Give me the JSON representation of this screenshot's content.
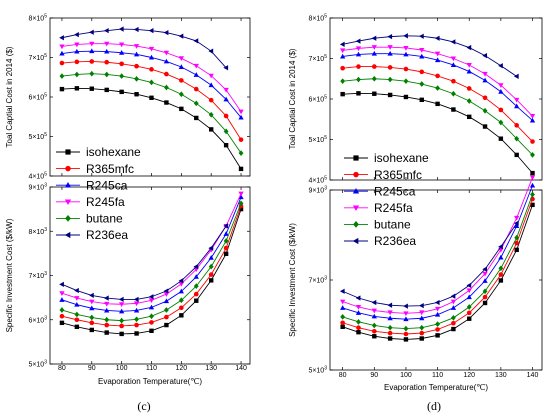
{
  "chart_data": [
    {
      "panel": "c",
      "type": "line",
      "caption": "(c)",
      "x": [
        80,
        85,
        90,
        95,
        100,
        105,
        110,
        115,
        120,
        125,
        130,
        135,
        140
      ],
      "xticks": [
        "80",
        "90",
        "100",
        "110",
        "120",
        "130",
        "140"
      ],
      "xlabel": "Evaporation Temperature(℃)",
      "xlim": [
        76,
        143
      ],
      "legend_placement": "center-left",
      "top": {
        "ylabel": "Toal Captial Cost in 2014 ($)",
        "ylim": [
          4.0,
          8.0
        ],
        "yticks": [
          {
            "v": 4,
            "b": "4×10",
            "e": "5"
          },
          {
            "v": 5,
            "b": "5×10",
            "e": "5"
          },
          {
            "v": 6,
            "b": "6×10",
            "e": "5"
          },
          {
            "v": 7,
            "b": "7×10",
            "e": "5"
          },
          {
            "v": 8,
            "b": "8×10",
            "e": "5"
          }
        ],
        "series": [
          {
            "name": "isohexane",
            "x": [
              80,
              85,
              90,
              95,
              100,
              105,
              110,
              115,
              120,
              125,
              130,
              135,
              140
            ],
            "values": [
              6.2,
              6.22,
              6.21,
              6.18,
              6.13,
              6.07,
              5.98,
              5.86,
              5.7,
              5.47,
              5.18,
              4.78,
              4.18
            ]
          },
          {
            "name": "R365mfc",
            "x": [
              80,
              85,
              90,
              95,
              100,
              105,
              110,
              115,
              120,
              125,
              130,
              135,
              140
            ],
            "values": [
              6.86,
              6.89,
              6.9,
              6.88,
              6.84,
              6.78,
              6.7,
              6.58,
              6.42,
              6.2,
              5.92,
              5.52,
              4.92
            ]
          },
          {
            "name": "R245ca",
            "x": [
              80,
              85,
              90,
              95,
              100,
              105,
              110,
              115,
              120,
              125,
              130,
              135,
              140
            ],
            "values": [
              7.1,
              7.15,
              7.16,
              7.15,
              7.12,
              7.08,
              7.0,
              6.9,
              6.76,
              6.56,
              6.3,
              5.94,
              5.48
            ]
          },
          {
            "name": "R245fa",
            "x": [
              80,
              85,
              90,
              95,
              100,
              105,
              110,
              115,
              120,
              125,
              130,
              135,
              140
            ],
            "values": [
              7.28,
              7.33,
              7.35,
              7.35,
              7.33,
              7.29,
              7.22,
              7.12,
              6.98,
              6.79,
              6.54,
              6.18,
              5.63
            ]
          },
          {
            "name": "butane",
            "x": [
              80,
              85,
              90,
              95,
              100,
              105,
              110,
              115,
              120,
              125,
              130,
              135,
              140
            ],
            "values": [
              6.53,
              6.57,
              6.59,
              6.57,
              6.53,
              6.46,
              6.37,
              6.24,
              6.07,
              5.84,
              5.55,
              5.13,
              4.58
            ]
          },
          {
            "name": "R236ea",
            "x": [
              80,
              85,
              90,
              95,
              100,
              105,
              110,
              115,
              120,
              125,
              130,
              135
            ],
            "values": [
              7.5,
              7.58,
              7.64,
              7.68,
              7.72,
              7.71,
              7.68,
              7.63,
              7.54,
              7.42,
              7.16,
              6.74
            ]
          }
        ]
      },
      "bottom": {
        "ylabel": "Specific Investment Cost ($/kW)",
        "ylim": [
          5.0,
          9.0
        ],
        "yticks": [
          {
            "v": 5,
            "b": "5×10",
            "e": "3"
          },
          {
            "v": 6,
            "b": "6×10",
            "e": "3"
          },
          {
            "v": 7,
            "b": "7×10",
            "e": "3"
          },
          {
            "v": 8,
            "b": "8×10",
            "e": "3"
          },
          {
            "v": 9,
            "b": "9×10",
            "e": "3"
          }
        ],
        "series": [
          {
            "name": "isohexane",
            "x": [
              80,
              85,
              90,
              95,
              100,
              105,
              110,
              115,
              120,
              125,
              130,
              135,
              140
            ],
            "values": [
              5.93,
              5.84,
              5.77,
              5.71,
              5.68,
              5.69,
              5.75,
              5.88,
              6.1,
              6.43,
              6.89,
              7.49,
              8.5
            ]
          },
          {
            "name": "R365mfc",
            "x": [
              80,
              85,
              90,
              95,
              100,
              105,
              110,
              115,
              120,
              125,
              130,
              135,
              140
            ],
            "values": [
              6.08,
              6.0,
              5.93,
              5.88,
              5.86,
              5.88,
              5.94,
              6.06,
              6.27,
              6.58,
              7.02,
              7.62,
              8.57
            ]
          },
          {
            "name": "R245ca",
            "x": [
              80,
              85,
              90,
              95,
              100,
              105,
              110,
              115,
              120,
              125,
              130,
              135,
              140
            ],
            "values": [
              6.45,
              6.34,
              6.26,
              6.21,
              6.19,
              6.21,
              6.28,
              6.42,
              6.64,
              6.97,
              7.4,
              7.94,
              8.77
            ]
          },
          {
            "name": "R245fa",
            "x": [
              80,
              85,
              90,
              95,
              100,
              105,
              110,
              115,
              120,
              125,
              130,
              135,
              140
            ],
            "values": [
              6.6,
              6.49,
              6.41,
              6.36,
              6.35,
              6.37,
              6.44,
              6.58,
              6.81,
              7.14,
              7.58,
              8.12,
              8.85
            ]
          },
          {
            "name": "butane",
            "x": [
              80,
              85,
              90,
              95,
              100,
              105,
              110,
              115,
              120,
              125,
              130,
              135,
              140
            ],
            "values": [
              6.22,
              6.12,
              6.05,
              6.0,
              5.98,
              6.01,
              6.08,
              6.22,
              6.44,
              6.76,
              7.2,
              7.78,
              8.63
            ]
          },
          {
            "name": "R236ea",
            "x": [
              80,
              85,
              90,
              95,
              100,
              105,
              110,
              115,
              120,
              125,
              130,
              135
            ],
            "values": [
              6.8,
              6.66,
              6.55,
              6.49,
              6.46,
              6.46,
              6.52,
              6.65,
              6.88,
              7.2,
              7.62,
              8.12
            ]
          }
        ]
      }
    },
    {
      "panel": "d",
      "type": "line",
      "caption": "(d)",
      "x": [
        80,
        85,
        90,
        95,
        100,
        105,
        110,
        115,
        120,
        125,
        130,
        135,
        140
      ],
      "xticks": [
        "80",
        "90",
        "100",
        "110",
        "120",
        "130",
        "140"
      ],
      "xlabel": "Evaporation Temperature(℃)",
      "xlim": [
        76,
        143
      ],
      "legend_placement": "center-right",
      "top": {
        "ylabel": "Toal Captial Cost in 2014 ($)",
        "ylim": [
          4.0,
          8.0
        ],
        "yticks": [
          {
            "v": 4,
            "b": "4×10",
            "e": "5"
          },
          {
            "v": 5,
            "b": "5×10",
            "e": "5"
          },
          {
            "v": 6,
            "b": "6×10",
            "e": "5"
          },
          {
            "v": 7,
            "b": "7×10",
            "e": "5"
          },
          {
            "v": 8,
            "b": "8×10",
            "e": "5"
          }
        ],
        "series": [
          {
            "name": "isohexane",
            "x": [
              80,
              85,
              90,
              95,
              100,
              105,
              110,
              115,
              120,
              125,
              130,
              135,
              140
            ],
            "values": [
              6.12,
              6.14,
              6.13,
              6.1,
              6.05,
              5.98,
              5.88,
              5.74,
              5.56,
              5.32,
              5.02,
              4.62,
              4.17
            ]
          },
          {
            "name": "R365mfc",
            "x": [
              80,
              85,
              90,
              95,
              100,
              105,
              110,
              115,
              120,
              125,
              130,
              135,
              140
            ],
            "values": [
              6.76,
              6.8,
              6.8,
              6.78,
              6.74,
              6.67,
              6.57,
              6.44,
              6.26,
              6.03,
              5.73,
              5.35,
              4.95
            ]
          },
          {
            "name": "R245ca",
            "x": [
              80,
              85,
              90,
              95,
              100,
              105,
              110,
              115,
              120,
              125,
              130,
              135,
              140
            ],
            "values": [
              7.05,
              7.1,
              7.12,
              7.12,
              7.1,
              7.05,
              6.96,
              6.84,
              6.68,
              6.46,
              6.18,
              5.82,
              5.47
            ]
          },
          {
            "name": "R245fa",
            "x": [
              80,
              85,
              90,
              95,
              100,
              105,
              110,
              115,
              120,
              125,
              130,
              135,
              140
            ],
            "values": [
              7.2,
              7.25,
              7.28,
              7.28,
              7.26,
              7.21,
              7.12,
              7.0,
              6.84,
              6.62,
              6.34,
              5.98,
              5.58
            ]
          },
          {
            "name": "butane",
            "x": [
              80,
              85,
              90,
              95,
              100,
              105,
              110,
              115,
              120,
              125,
              130,
              135,
              140
            ],
            "values": [
              6.44,
              6.48,
              6.5,
              6.48,
              6.44,
              6.37,
              6.27,
              6.13,
              5.95,
              5.71,
              5.42,
              5.02,
              4.62
            ]
          },
          {
            "name": "R236ea",
            "x": [
              80,
              85,
              90,
              95,
              100,
              105,
              110,
              115,
              120,
              125,
              130,
              135
            ],
            "values": [
              7.35,
              7.43,
              7.5,
              7.54,
              7.56,
              7.55,
              7.5,
              7.41,
              7.27,
              7.07,
              6.82,
              6.56
            ]
          }
        ]
      },
      "bottom": {
        "ylabel": "Specific Investment Cost ($/kW)",
        "ylim": [
          5.0,
          9.0
        ],
        "yticks": [
          {
            "v": 5,
            "b": "5×10",
            "e": "3"
          },
          {
            "v": 7,
            "b": "7×10",
            "e": "3"
          },
          {
            "v": 9,
            "b": "9×10",
            "e": "3"
          }
        ],
        "series": [
          {
            "name": "isohexane",
            "x": [
              80,
              85,
              90,
              95,
              100,
              105,
              110,
              115,
              120,
              125,
              130,
              135,
              140
            ],
            "values": [
              5.96,
              5.84,
              5.75,
              5.7,
              5.68,
              5.7,
              5.77,
              5.91,
              6.14,
              6.49,
              6.99,
              7.67,
              8.67
            ]
          },
          {
            "name": "R365mfc",
            "x": [
              80,
              85,
              90,
              95,
              100,
              105,
              110,
              115,
              120,
              125,
              130,
              135,
              140
            ],
            "values": [
              6.05,
              5.94,
              5.86,
              5.82,
              5.8,
              5.82,
              5.9,
              6.04,
              6.27,
              6.62,
              7.12,
              7.82,
              8.8
            ]
          },
          {
            "name": "R245ca",
            "x": [
              80,
              85,
              90,
              95,
              100,
              105,
              110,
              115,
              120,
              125,
              130,
              135,
              140
            ],
            "values": [
              6.38,
              6.27,
              6.19,
              6.15,
              6.13,
              6.15,
              6.23,
              6.38,
              6.62,
              6.98,
              7.5,
              8.2,
              9.1
            ]
          },
          {
            "name": "R245fa",
            "x": [
              80,
              85,
              90,
              95,
              100,
              105,
              110,
              115,
              120,
              125,
              130,
              135,
              140
            ],
            "values": [
              6.52,
              6.4,
              6.32,
              6.28,
              6.26,
              6.28,
              6.36,
              6.52,
              6.77,
              7.14,
              7.67,
              8.38,
              9.28
            ]
          },
          {
            "name": "butane",
            "x": [
              80,
              85,
              90,
              95,
              100,
              105,
              110,
              115,
              120,
              125,
              130,
              135,
              140
            ],
            "values": [
              6.18,
              6.07,
              5.99,
              5.94,
              5.92,
              5.94,
              6.02,
              6.16,
              6.4,
              6.75,
              7.26,
              7.94,
              8.9
            ]
          },
          {
            "name": "R236ea",
            "x": [
              80,
              85,
              90,
              95,
              100,
              105,
              110,
              115,
              120,
              125,
              130,
              135
            ],
            "values": [
              6.75,
              6.6,
              6.5,
              6.44,
              6.42,
              6.43,
              6.5,
              6.64,
              6.88,
              7.24,
              7.74,
              8.26
            ]
          }
        ]
      }
    }
  ],
  "styles": {
    "isohexane": {
      "color": "#000000",
      "marker": "square"
    },
    "R365mfc": {
      "color": "#ff0000",
      "marker": "circle"
    },
    "R245ca": {
      "color": "#0000ff",
      "marker": "triangle-up"
    },
    "R245fa": {
      "color": "#ff00ff",
      "marker": "triangle-down"
    },
    "butane": {
      "color": "#008000",
      "marker": "diamond"
    },
    "R236ea": {
      "color": "#000080",
      "marker": "triangle-left"
    }
  }
}
